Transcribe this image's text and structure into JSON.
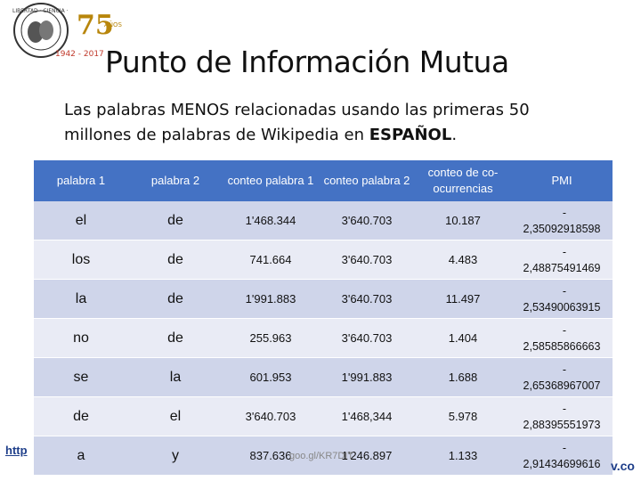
{
  "slide": {
    "title": "Punto de Información Mutua",
    "subtitle_plain": "Las palabras MENOS relacionadas usando las primeras 50 millones de palabras de Wikipedia en ",
    "subtitle_bold": "ESPAÑOL",
    "subtitle_end": ".",
    "logo": {
      "ring_text_top": "LIBERTAD · CIENCIA ·",
      "years": "1942 - 2017",
      "anniversary": "75",
      "anniversary_word": "AÑOS",
      "icon": "university-seal-logo"
    }
  },
  "table": {
    "headers": [
      "palabra 1",
      "palabra 2",
      "conteo palabra 1",
      "conteo palabra 2",
      "conteo de co-ocurrencias",
      "PMI"
    ],
    "rows": [
      {
        "w1": "el",
        "w2": "de",
        "c1": "1'468.344",
        "c2": "3'640.703",
        "co": "10.187",
        "sign": "-",
        "pmi": "2,35092918598"
      },
      {
        "w1": "los",
        "w2": "de",
        "c1": "741.664",
        "c2": "3'640.703",
        "co": "4.483",
        "sign": "-",
        "pmi": "2,48875491469"
      },
      {
        "w1": "la",
        "w2": "de",
        "c1": "1'991.883",
        "c2": "3'640.703",
        "co": "11.497",
        "sign": "-",
        "pmi": "2,53490063915"
      },
      {
        "w1": "no",
        "w2": "de",
        "c1": "255.963",
        "c2": "3'640.703",
        "co": "1.404",
        "sign": "-",
        "pmi": "2,58585866663"
      },
      {
        "w1": "se",
        "w2": "la",
        "c1": "601.953",
        "c2": "1'991.883",
        "co": "1.688",
        "sign": "-",
        "pmi": "2,65368967007"
      },
      {
        "w1": "de",
        "w2": "el",
        "c1": "3'640.703",
        "c2": "1'468,344",
        "co": "5.978",
        "sign": "-",
        "pmi": "2,88395551973"
      },
      {
        "w1": "a",
        "w2": "y",
        "c1": "837.636",
        "c2": "1'246.897",
        "co": "1.133",
        "sign": "-",
        "pmi": "2,91434699616"
      }
    ]
  },
  "footer": {
    "left_link": "http",
    "mid": "goo.gl/KR7DIT",
    "right": "v.co"
  }
}
